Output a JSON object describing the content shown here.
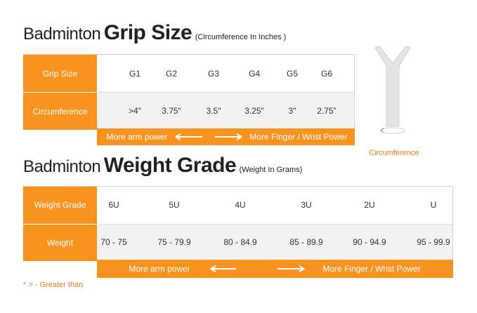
{
  "grip": {
    "title_light": "Badminton",
    "title_bold": "Grip Size",
    "subtitle": "(Circumference In Inches )",
    "rows": [
      [
        "Grip Size",
        "G1",
        "G2",
        "G3",
        "G4",
        "G5",
        "G6"
      ],
      [
        "Circumference",
        ">4\"",
        "3.75\"",
        "3.5\"",
        "3.25\"",
        "3\"",
        "2.75\""
      ]
    ],
    "bar_left": "More arm power",
    "bar_right": "More Finger / Wrist Power",
    "icon_label": "Circumference"
  },
  "weight": {
    "title_light": "Badminton",
    "title_bold": "Weight Grade",
    "subtitle": "(Weight In Grams)",
    "rows": [
      [
        "Weight Grade",
        "6U",
        "5U",
        "4U",
        "3U",
        "2U",
        "U"
      ],
      [
        "Weight",
        "70 - 75",
        "75 - 79.9",
        "80 - 84.9",
        "85 - 89.9",
        "90 - 94.9",
        "95 - 99.9"
      ]
    ],
    "bar_left": "More arm power",
    "bar_right": "More Finger / Wrist Power"
  },
  "footnote": "* > - Greater than"
}
